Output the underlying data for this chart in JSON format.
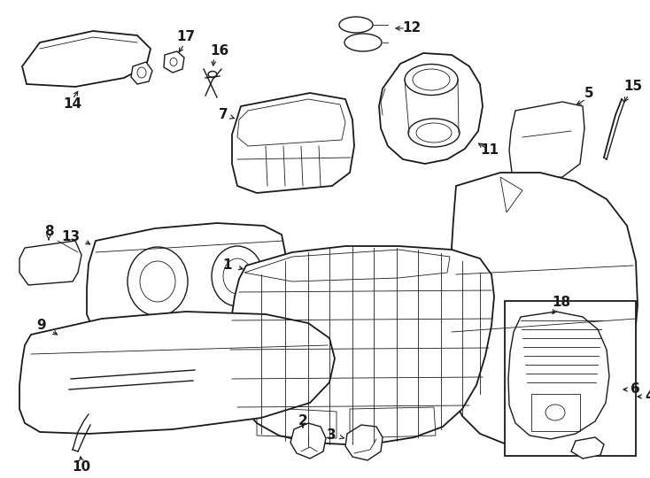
{
  "bg_color": "#ffffff",
  "line_color": "#1a1a1a",
  "fig_w": 7.34,
  "fig_h": 5.4,
  "dpi": 100,
  "label_fs": 11,
  "lw_main": 1.0,
  "lw_thick": 1.3,
  "lw_thin": 0.6
}
